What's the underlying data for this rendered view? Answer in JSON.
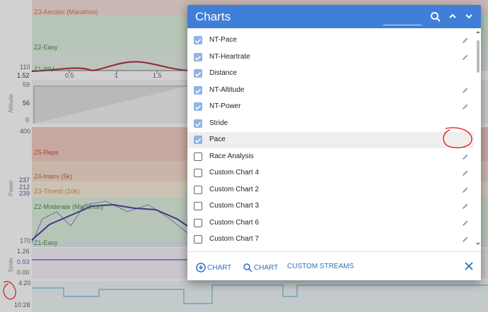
{
  "background": {
    "heart_rate": {
      "zones": [
        "Z3-Aerobic (Marathon)",
        "Z2-Easy",
        "Z1-WU"
      ],
      "axis": [
        "110",
        "1.52"
      ],
      "distance_ticks": [
        "0.5",
        "1",
        "1.5"
      ]
    },
    "altitude": {
      "title": "Altitude",
      "axis": [
        "59",
        "56",
        "0"
      ]
    },
    "power": {
      "title": "Power",
      "zones": [
        "Z5-Reps",
        "Z4-Interv (5k)",
        "Z3-Thresh (10k)",
        "Z2-Moderate (Marathon)",
        "Z1-Easy"
      ],
      "axis": [
        "400",
        "237",
        "212",
        "239",
        "170"
      ]
    },
    "stride": {
      "title": "Stride",
      "axis": [
        "1.26",
        "0.93",
        "0.00"
      ]
    },
    "pace": {
      "axis": [
        "4:20",
        "10:28"
      ]
    }
  },
  "dialog": {
    "title": "Charts",
    "items": [
      {
        "label": "NT-Pace",
        "checked": true,
        "editable": true
      },
      {
        "label": "NT-Heartrate",
        "checked": true,
        "editable": true
      },
      {
        "label": "Distance",
        "checked": true,
        "editable": false
      },
      {
        "label": "NT-Altitude",
        "checked": true,
        "editable": true
      },
      {
        "label": "NT-Power",
        "checked": true,
        "editable": true
      },
      {
        "label": "Stride",
        "checked": true,
        "editable": false
      },
      {
        "label": "Pace",
        "checked": true,
        "editable": false
      },
      {
        "label": "Race Analysis",
        "checked": false,
        "editable": true
      },
      {
        "label": "Custom Chart 4",
        "checked": false,
        "editable": true
      },
      {
        "label": "Custom Chart 2",
        "checked": false,
        "editable": true
      },
      {
        "label": "Custom Chart 3",
        "checked": false,
        "editable": true
      },
      {
        "label": "Custom Chart 6",
        "checked": false,
        "editable": true
      },
      {
        "label": "Custom Chart 7",
        "checked": false,
        "editable": true
      }
    ],
    "actions": [
      "CHART",
      "CHART",
      "CUSTOM STREAMS"
    ]
  }
}
